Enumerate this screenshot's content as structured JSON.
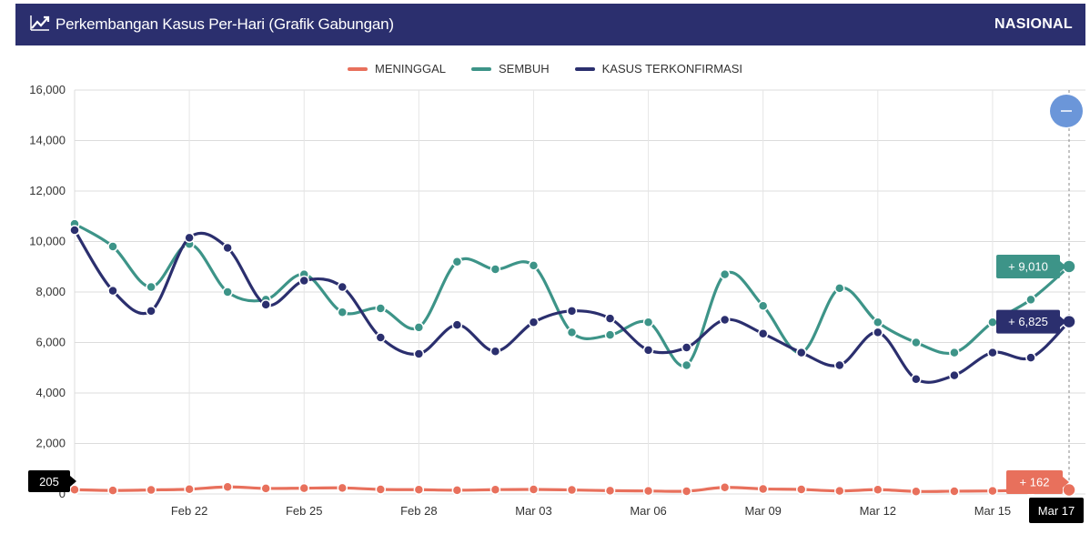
{
  "header": {
    "title": "Perkembangan Kasus Per-Hari (Grafik Gabungan)",
    "icon": "line-chart-icon",
    "scope": "NASIONAL"
  },
  "legend": [
    {
      "label": "MENINGGAL",
      "color": "#e8705c"
    },
    {
      "label": "SEMBUH",
      "color": "#3d9488"
    },
    {
      "label": "KASUS TERKONFIRMASI",
      "color": "#2b2f6e"
    }
  ],
  "tooltips": {
    "sembuh": "+ 9,010",
    "kasus": "+ 6,825",
    "meninggal": "+ 162",
    "y_cursor": "205",
    "x_cursor": "Mar 17"
  },
  "chart_data": {
    "type": "line",
    "x": [
      "Feb 19",
      "Feb 20",
      "Feb 21",
      "Feb 22",
      "Feb 23",
      "Feb 24",
      "Feb 25",
      "Feb 26",
      "Feb 27",
      "Feb 28",
      "Mar 01",
      "Mar 02",
      "Mar 03",
      "Mar 04",
      "Mar 05",
      "Mar 06",
      "Mar 07",
      "Mar 08",
      "Mar 09",
      "Mar 10",
      "Mar 11",
      "Mar 12",
      "Mar 13",
      "Mar 14",
      "Mar 15",
      "Mar 16",
      "Mar 17"
    ],
    "x_ticks": [
      "Feb 22",
      "Feb 25",
      "Feb 28",
      "Mar 03",
      "Mar 06",
      "Mar 09",
      "Mar 12",
      "Mar 15",
      "Mar 17"
    ],
    "y_ticks": [
      "0",
      "2,000",
      "4,000",
      "6,000",
      "8,000",
      "10,000",
      "12,000",
      "14,000",
      "16,000"
    ],
    "ylim": [
      0,
      16000
    ],
    "grid": true,
    "legend_position": "top-center",
    "series": [
      {
        "name": "MENINGGAL",
        "color": "#e8705c",
        "values": [
          170,
          140,
          160,
          190,
          280,
          220,
          230,
          240,
          180,
          170,
          150,
          170,
          180,
          160,
          130,
          120,
          110,
          260,
          200,
          180,
          120,
          170,
          100,
          110,
          120,
          150,
          162
        ]
      },
      {
        "name": "SEMBUH",
        "color": "#3d9488",
        "values": [
          10700,
          9800,
          8200,
          9900,
          8000,
          7700,
          8700,
          7200,
          7350,
          6600,
          9200,
          8900,
          9050,
          6400,
          6300,
          6800,
          5100,
          8700,
          7450,
          5600,
          8150,
          6800,
          6000,
          5600,
          6800,
          7700,
          9010
        ]
      },
      {
        "name": "KASUS TERKONFIRMASI",
        "color": "#2b2f6e",
        "values": [
          10450,
          8050,
          7250,
          10150,
          9750,
          7500,
          8450,
          8200,
          6200,
          5550,
          6700,
          5650,
          6800,
          7250,
          6950,
          5700,
          5800,
          6900,
          6350,
          5600,
          5100,
          6400,
          4550,
          4700,
          5600,
          5400,
          6825
        ]
      }
    ]
  }
}
